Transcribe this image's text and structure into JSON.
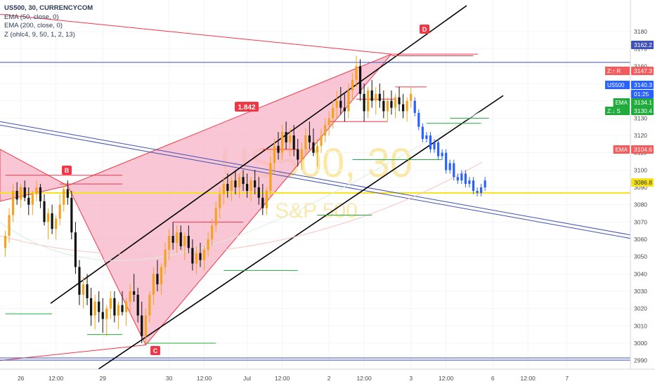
{
  "legend": {
    "symbol": "US500, 30, CURRENCYCOM",
    "ema50": "EMA (50, close, 0)",
    "ema200": "EMA (200, close, 0)",
    "zigzag": "Z (ohlc4, 9, 50, 1, 2, 13)"
  },
  "watermark": {
    "symbol": "US500, 30",
    "name": "S&P 500"
  },
  "pattern": {
    "ratio_label": "1.842",
    "point_b": "B",
    "point_c": "C",
    "point_d": "D"
  },
  "price_tags": [
    {
      "label": "",
      "value": "3162.2",
      "kind": "line",
      "color": "#3f51b5",
      "price": 3162.2
    },
    {
      "label": "Z:↑ R",
      "value": "3147.3",
      "kind": "zr",
      "color": "#f45d5d",
      "price": 3147.3
    },
    {
      "label": "US500",
      "value": "3140.3",
      "kind": "last",
      "color": "#2962ff",
      "price": 3140.3
    },
    {
      "label": "",
      "value": "01:25",
      "kind": "time",
      "color": "#2962ff",
      "price": 3135.8
    },
    {
      "label": "EMA",
      "value": "3134.1",
      "kind": "ema",
      "color": "#22ab3d",
      "price": 3134.1
    },
    {
      "label": "Z:↓ S",
      "value": "3130.4",
      "kind": "zs",
      "color": "#22ab3d",
      "price": 3130.4
    },
    {
      "label": "EMA",
      "value": "3104.6",
      "kind": "ema200",
      "color": "#f45d5d",
      "price": 3104.6
    },
    {
      "label": "",
      "value": "3086.8",
      "kind": "level",
      "color": "#f5e21a",
      "price": 3086.8
    }
  ],
  "chart_data": {
    "type": "candlestick",
    "y_ticks": [
      2990,
      3000,
      3010,
      3020,
      3030,
      3040,
      3050,
      3060,
      3070,
      3080,
      3090,
      3100,
      3110,
      3120,
      3130,
      3140,
      3150,
      3160,
      3170,
      3180
    ],
    "x_ticks": [
      "26",
      "12:00",
      "29",
      "30",
      "12:00",
      "Jul",
      "12:00",
      "2",
      "12:00",
      "3",
      "12:00",
      "6",
      "12:00",
      "7"
    ],
    "ylim": [
      2985,
      3195
    ],
    "xlim": [
      0,
      156
    ],
    "x_tick_bars": [
      4,
      13,
      25,
      42,
      51,
      62,
      71,
      83,
      92,
      104,
      113,
      125,
      134,
      144
    ],
    "horizontal_levels": [
      3162.2,
      3086.8,
      2991.5
    ],
    "pattern_points": {
      "X": [
        0,
        3098
      ],
      "B": [
        16,
        3091
      ],
      "C": [
        36,
        2999
      ],
      "D": [
        99,
        3167
      ]
    },
    "zigzag_resistance": [
      3097,
      3092,
      3070,
      3112,
      3128,
      3141,
      3148,
      3166
    ],
    "zigzag_support": [
      3017,
      3005,
      3000,
      3042,
      3074,
      3106,
      3127,
      3130
    ],
    "candles": [
      [
        3055,
        3065,
        3050,
        3062
      ],
      [
        3062,
        3078,
        3058,
        3074
      ],
      [
        3074,
        3092,
        3070,
        3088
      ],
      [
        3088,
        3093,
        3080,
        3083
      ],
      [
        3083,
        3092,
        3078,
        3090
      ],
      [
        3090,
        3094,
        3082,
        3084
      ],
      [
        3084,
        3090,
        3074,
        3080
      ],
      [
        3080,
        3088,
        3074,
        3086
      ],
      [
        3086,
        3094,
        3082,
        3090
      ],
      [
        3090,
        3092,
        3078,
        3082
      ],
      [
        3082,
        3086,
        3068,
        3070
      ],
      [
        3070,
        3078,
        3060,
        3075
      ],
      [
        3075,
        3080,
        3063,
        3066
      ],
      [
        3066,
        3074,
        3060,
        3072
      ],
      [
        3072,
        3086,
        3068,
        3080
      ],
      [
        3080,
        3092,
        3076,
        3089
      ],
      [
        3089,
        3094,
        3080,
        3084
      ],
      [
        3084,
        3088,
        3060,
        3064
      ],
      [
        3064,
        3070,
        3040,
        3044
      ],
      [
        3044,
        3048,
        3022,
        3028
      ],
      [
        3028,
        3038,
        3020,
        3034
      ],
      [
        3034,
        3040,
        3022,
        3026
      ],
      [
        3026,
        3032,
        3010,
        3016
      ],
      [
        3016,
        3028,
        3008,
        3024
      ],
      [
        3024,
        3030,
        3012,
        3018
      ],
      [
        3018,
        3026,
        3006,
        3014
      ],
      [
        3014,
        3022,
        3004,
        3020
      ],
      [
        3020,
        3030,
        3014,
        3026
      ],
      [
        3026,
        3030,
        3012,
        3016
      ],
      [
        3016,
        3024,
        3008,
        3022
      ],
      [
        3022,
        3030,
        3016,
        3018
      ],
      [
        3018,
        3026,
        3010,
        3024
      ],
      [
        3024,
        3034,
        3018,
        3030
      ],
      [
        3030,
        3040,
        3024,
        3028
      ],
      [
        3028,
        3032,
        3012,
        3016
      ],
      [
        3016,
        3024,
        3000,
        3004
      ],
      [
        3004,
        3020,
        3000,
        3016
      ],
      [
        3016,
        3030,
        3012,
        3028
      ],
      [
        3028,
        3044,
        3022,
        3040
      ],
      [
        3040,
        3048,
        3030,
        3034
      ],
      [
        3034,
        3046,
        3028,
        3044
      ],
      [
        3044,
        3058,
        3040,
        3054
      ],
      [
        3054,
        3066,
        3048,
        3062
      ],
      [
        3062,
        3070,
        3054,
        3058
      ],
      [
        3058,
        3068,
        3052,
        3064
      ],
      [
        3064,
        3068,
        3054,
        3056
      ],
      [
        3056,
        3064,
        3048,
        3062
      ],
      [
        3062,
        3068,
        3052,
        3055
      ],
      [
        3055,
        3060,
        3042,
        3046
      ],
      [
        3046,
        3056,
        3040,
        3052
      ],
      [
        3052,
        3058,
        3044,
        3048
      ],
      [
        3048,
        3056,
        3042,
        3054
      ],
      [
        3054,
        3064,
        3050,
        3060
      ],
      [
        3060,
        3072,
        3056,
        3068
      ],
      [
        3068,
        3082,
        3064,
        3078
      ],
      [
        3078,
        3090,
        3072,
        3086
      ],
      [
        3086,
        3096,
        3080,
        3092
      ],
      [
        3092,
        3098,
        3084,
        3088
      ],
      [
        3088,
        3096,
        3082,
        3094
      ],
      [
        3094,
        3100,
        3086,
        3090
      ],
      [
        3090,
        3098,
        3084,
        3096
      ],
      [
        3096,
        3100,
        3088,
        3092
      ],
      [
        3092,
        3098,
        3084,
        3088
      ],
      [
        3088,
        3096,
        3082,
        3094
      ],
      [
        3094,
        3100,
        3086,
        3090
      ],
      [
        3090,
        3096,
        3080,
        3084
      ],
      [
        3084,
        3092,
        3074,
        3078
      ],
      [
        3078,
        3090,
        3074,
        3088
      ],
      [
        3088,
        3108,
        3084,
        3104
      ],
      [
        3104,
        3118,
        3098,
        3114
      ],
      [
        3114,
        3122,
        3106,
        3110
      ],
      [
        3110,
        3126,
        3106,
        3122
      ],
      [
        3122,
        3128,
        3112,
        3116
      ],
      [
        3116,
        3124,
        3108,
        3120
      ],
      [
        3120,
        3126,
        3108,
        3112
      ],
      [
        3112,
        3118,
        3102,
        3106
      ],
      [
        3106,
        3116,
        3100,
        3112
      ],
      [
        3112,
        3124,
        3108,
        3120
      ],
      [
        3120,
        3128,
        3112,
        3116
      ],
      [
        3116,
        3124,
        3108,
        3110
      ],
      [
        3110,
        3118,
        3102,
        3114
      ],
      [
        3114,
        3124,
        3110,
        3120
      ],
      [
        3120,
        3130,
        3116,
        3126
      ],
      [
        3126,
        3134,
        3120,
        3130
      ],
      [
        3130,
        3140,
        3124,
        3136
      ],
      [
        3136,
        3146,
        3130,
        3140
      ],
      [
        3140,
        3148,
        3132,
        3136
      ],
      [
        3136,
        3144,
        3128,
        3134
      ],
      [
        3134,
        3150,
        3130,
        3146
      ],
      [
        3146,
        3156,
        3140,
        3152
      ],
      [
        3152,
        3166,
        3148,
        3160
      ],
      [
        3160,
        3164,
        3140,
        3144
      ],
      [
        3144,
        3150,
        3128,
        3134
      ],
      [
        3134,
        3148,
        3130,
        3146
      ],
      [
        3146,
        3152,
        3136,
        3140
      ],
      [
        3140,
        3148,
        3132,
        3144
      ],
      [
        3144,
        3150,
        3136,
        3140
      ],
      [
        3140,
        3146,
        3130,
        3134
      ],
      [
        3134,
        3142,
        3128,
        3140
      ],
      [
        3140,
        3146,
        3132,
        3136
      ],
      [
        3136,
        3144,
        3130,
        3142
      ],
      [
        3142,
        3148,
        3134,
        3138
      ],
      [
        3138,
        3144,
        3130,
        3134
      ],
      [
        3134,
        3142,
        3128,
        3140
      ],
      [
        3140,
        3148,
        3136,
        3144
      ]
    ],
    "projection_closes": [
      3140,
      3133,
      3125,
      3118,
      3120,
      3112,
      3116,
      3108,
      3110,
      3100,
      3104,
      3096,
      3094,
      3098,
      3092,
      3094,
      3088,
      3086.8,
      3090,
      3094
    ]
  }
}
